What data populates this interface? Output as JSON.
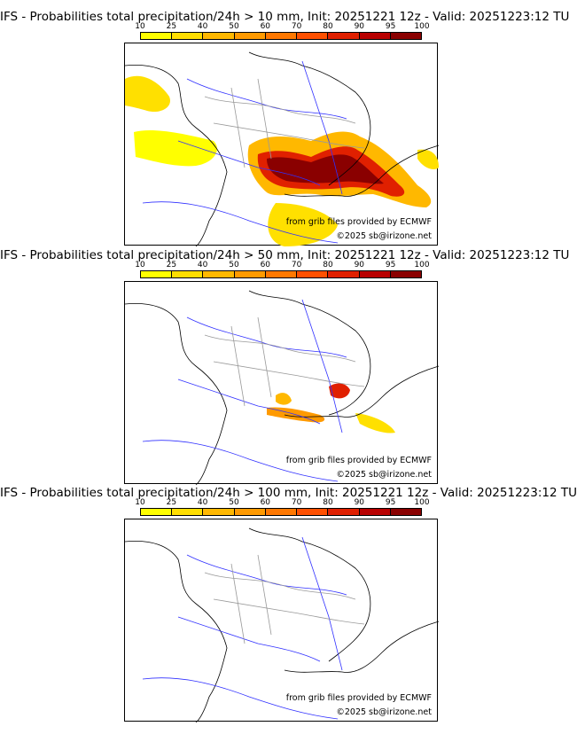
{
  "colorbar": {
    "levels": [
      "10",
      "25",
      "40",
      "50",
      "60",
      "70",
      "80",
      "90",
      "95",
      "100"
    ],
    "colors": [
      "#ffff00",
      "#ffde00",
      "#ffb800",
      "#ff9a00",
      "#ff7800",
      "#ff5000",
      "#e02000",
      "#b80000",
      "#8a0000"
    ]
  },
  "credits": {
    "source": "from grib files provided by ECMWF",
    "copyright": "©2025 sb@irizone.net"
  },
  "panels": [
    {
      "title": "IFS - Probabilities total precipitation/24h > 10 mm, Init: 20251221 12z - Valid: 20251223:12 TU"
    },
    {
      "title": "IFS - Probabilities total precipitation/24h > 50 mm, Init: 20251221 12z - Valid: 20251223:12 TU"
    },
    {
      "title": "IFS - Probabilities total precipitation/24h > 100 mm, Init: 20251221 12z - Valid: 20251223:12 TU"
    }
  ]
}
